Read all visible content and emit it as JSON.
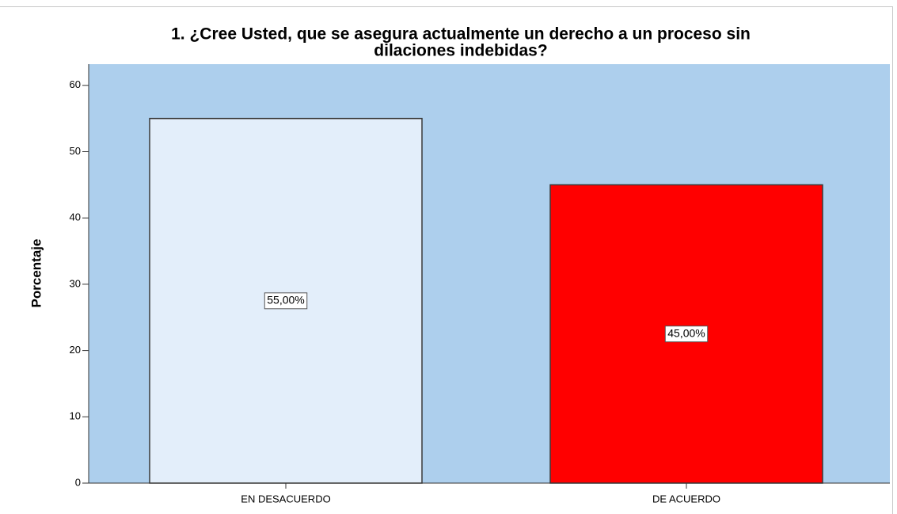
{
  "chart_data": {
    "type": "bar",
    "title": [
      "1. ¿Cree Usted, que se asegura actualmente un derecho a un proceso sin",
      "dilaciones indebidas?"
    ],
    "y_label": "Porcentaje",
    "categories": [
      "EN DESACUERDO",
      "DE ACUERDO"
    ],
    "values": [
      55,
      45
    ],
    "value_labels": [
      "55,00%",
      "45,00%"
    ],
    "colors": [
      "#e3eefa",
      "#ff0000"
    ],
    "background": "#adcfed",
    "ylim": [
      0,
      63.2
    ],
    "yticks": [
      0,
      10,
      20,
      30,
      40,
      50,
      60
    ]
  }
}
